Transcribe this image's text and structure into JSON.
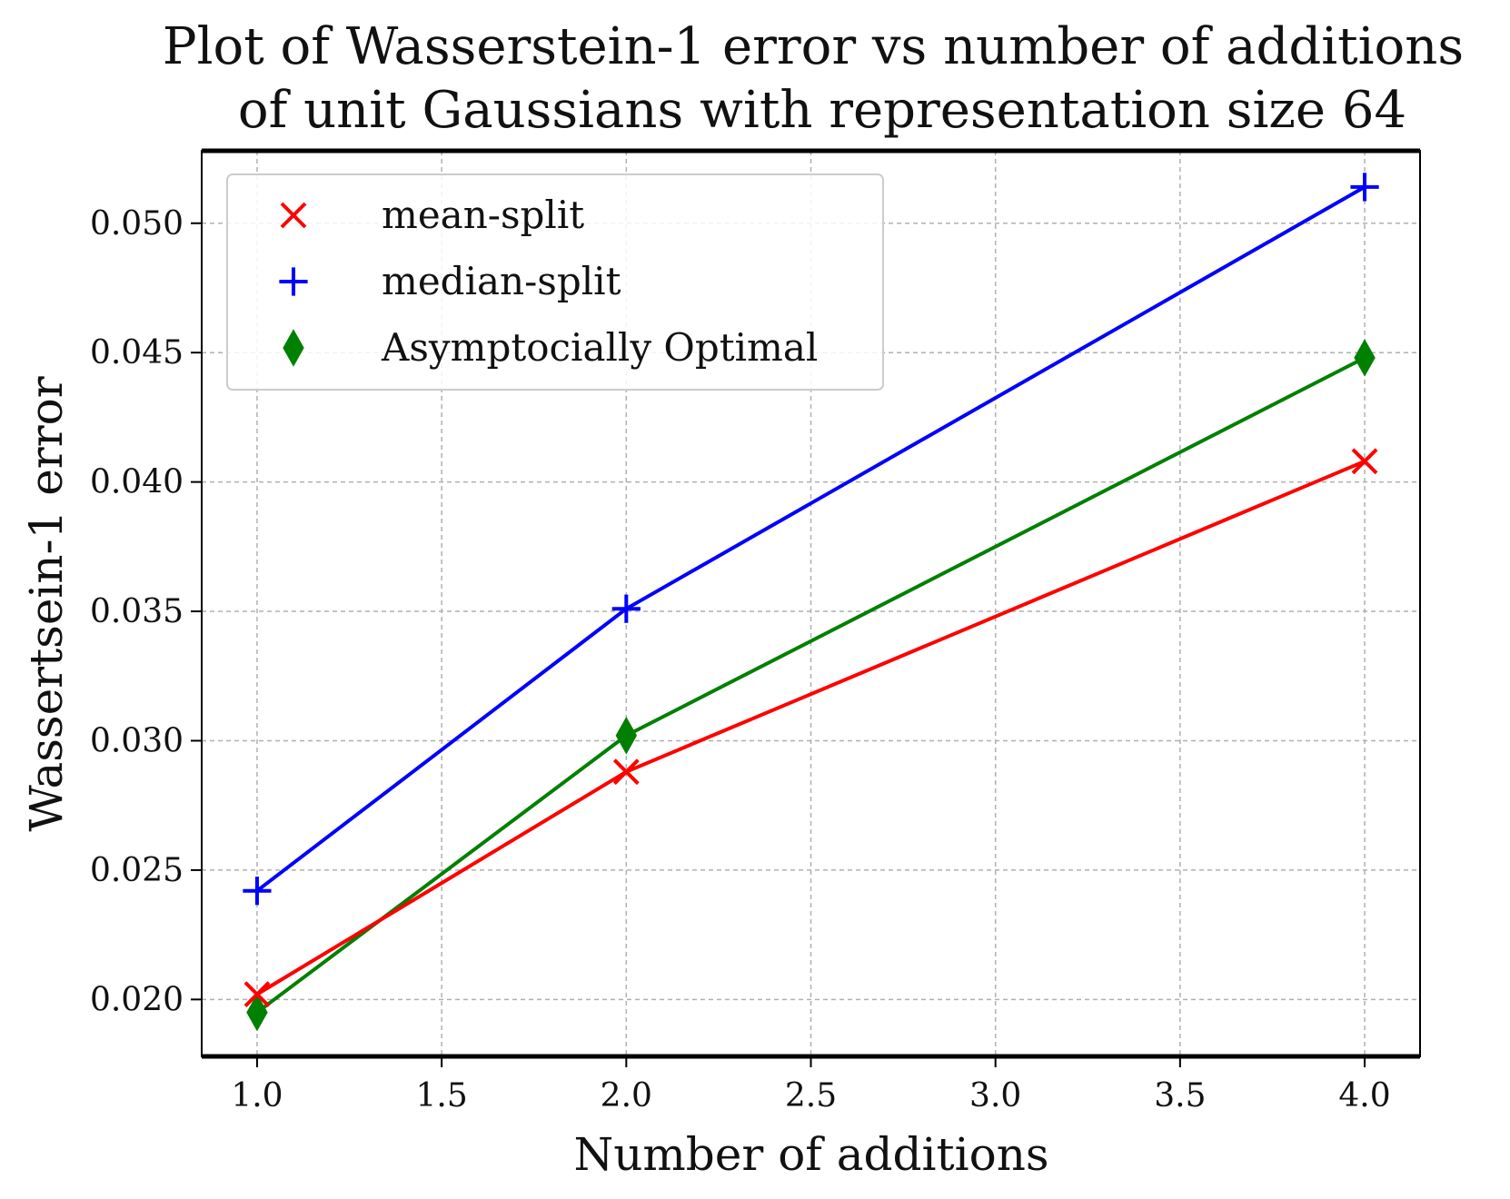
{
  "chart_data": {
    "type": "line",
    "title": [
      "Plot of Wasserstein-1 error vs number of additions",
      "of unit Gaussians with representation size 64"
    ],
    "xlabel": "Number of additions",
    "ylabel": "Wassertsein-1 error",
    "xlim": [
      0.85,
      4.15
    ],
    "ylim": [
      0.0178,
      0.0528
    ],
    "xticks": [
      1.0,
      1.5,
      2.0,
      2.5,
      3.0,
      3.5,
      4.0
    ],
    "xtick_labels": [
      "1.0",
      "1.5",
      "2.0",
      "2.5",
      "3.0",
      "3.5",
      "4.0"
    ],
    "yticks": [
      0.02,
      0.025,
      0.03,
      0.035,
      0.04,
      0.045,
      0.05
    ],
    "ytick_labels": [
      "0.020",
      "0.025",
      "0.030",
      "0.035",
      "0.040",
      "0.045",
      "0.050"
    ],
    "grid": true,
    "legend_position": "top-left",
    "x": [
      1,
      2,
      4
    ],
    "series": [
      {
        "name": "mean-split",
        "marker": "x",
        "color": "#ff0000",
        "values": [
          0.0202,
          0.0288,
          0.0408
        ]
      },
      {
        "name": "median-split",
        "marker": "+",
        "color": "#0000ff",
        "values": [
          0.0242,
          0.0351,
          0.0514
        ]
      },
      {
        "name": "Asymptocially Optimal",
        "marker": "diamond",
        "color": "#008000",
        "values": [
          0.0195,
          0.0302,
          0.0448
        ]
      }
    ]
  }
}
